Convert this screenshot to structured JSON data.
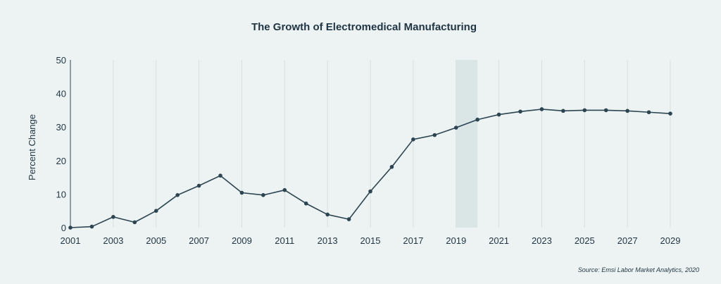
{
  "chart_data": {
    "type": "line",
    "title": "The Growth of Electromedical Manufacturing",
    "xlabel": "",
    "ylabel": "Percent Change",
    "source": "Source: Emsi Labor Market Analytics, 2020",
    "x": [
      2001,
      2002,
      2003,
      2004,
      2005,
      2006,
      2007,
      2008,
      2009,
      2010,
      2011,
      2012,
      2013,
      2014,
      2015,
      2016,
      2017,
      2018,
      2019,
      2020,
      2021,
      2022,
      2023,
      2024,
      2025,
      2026,
      2027,
      2028,
      2029
    ],
    "series": [
      {
        "values": [
          0,
          0.3,
          3.2,
          1.6,
          5,
          9.7,
          12.5,
          15.5,
          10.4,
          9.7,
          11.2,
          7.2,
          3.9,
          2.5,
          10.8,
          18.1,
          26.3,
          27.6,
          29.8,
          32.2,
          33.7,
          34.6,
          35.3,
          34.8,
          35,
          35,
          34.8,
          34.4,
          34
        ]
      }
    ],
    "xticks": [
      "2001",
      "2003",
      "2005",
      "2007",
      "2009",
      "2011",
      "2013",
      "2015",
      "2017",
      "2019",
      "2021",
      "2023",
      "2025",
      "2027",
      "2029"
    ],
    "yticks": [
      "0",
      "10",
      "20",
      "30",
      "40",
      "50"
    ],
    "xlim": [
      2001,
      2029
    ],
    "ylim": [
      0,
      50
    ],
    "highlight_range": [
      2019,
      2020
    ],
    "grid": "vertical",
    "colors": {
      "line": "#2c4552",
      "point": "#2c4552",
      "grid": "#d7e1df",
      "highlight": "#dae5e6",
      "axis": "#2c4552"
    }
  }
}
